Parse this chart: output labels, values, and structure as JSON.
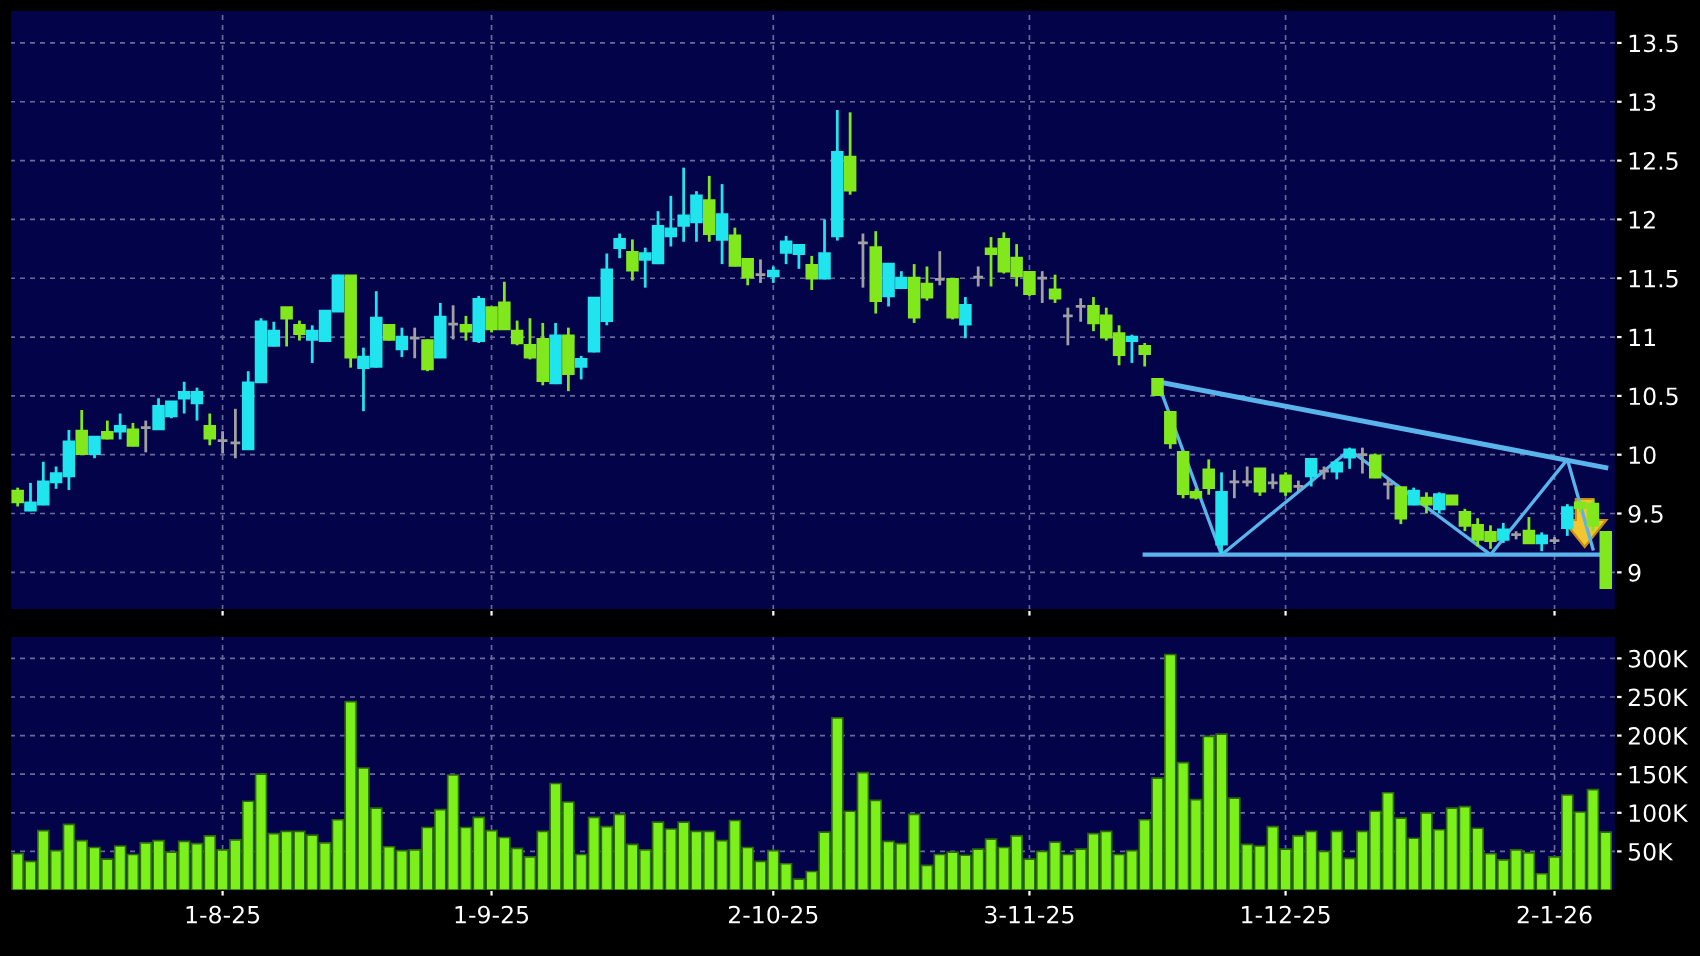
{
  "chart_data": [
    {
      "type": "candlestick",
      "grid": true,
      "tick_labels": "y",
      "ylim": [
        8.68,
        13.78
      ],
      "yticks": [
        9,
        9.5,
        10,
        10.5,
        11,
        11.5,
        12,
        12.5,
        13,
        13.5
      ],
      "categories": [
        null,
        null,
        null,
        null,
        null,
        null,
        null,
        null,
        null,
        null,
        null,
        null,
        null,
        null,
        null,
        null,
        null,
        null,
        null,
        null,
        null,
        null,
        null,
        null,
        null,
        null,
        null,
        null,
        null,
        null,
        null,
        null,
        null,
        null,
        null,
        null,
        null,
        null,
        null,
        null,
        null,
        null,
        null,
        null,
        null,
        null,
        null,
        null,
        null,
        null,
        null,
        null,
        null,
        null,
        null,
        null,
        null,
        null,
        null,
        null,
        null,
        null,
        null,
        null,
        null,
        null,
        null,
        null,
        null,
        null,
        null,
        null,
        null,
        null,
        null,
        null,
        null,
        null,
        null,
        null,
        null,
        null,
        null,
        null,
        null,
        null,
        null,
        null,
        null,
        null,
        null,
        null,
        null,
        null,
        null,
        null,
        null,
        null,
        null,
        null,
        null,
        null,
        null,
        null,
        null,
        null,
        null,
        null,
        null,
        null,
        null,
        null,
        null,
        null,
        null,
        null,
        null,
        null,
        null,
        null,
        null,
        null,
        null,
        null,
        null
      ],
      "ohlc": [
        [
          9.69,
          9.72,
          9.56,
          9.6
        ],
        [
          9.53,
          9.76,
          9.52,
          9.59
        ],
        [
          9.58,
          9.94,
          9.57,
          9.77
        ],
        [
          9.77,
          9.9,
          9.71,
          9.84
        ],
        [
          9.82,
          10.21,
          9.7,
          10.11
        ],
        [
          10.2,
          10.38,
          10.01,
          10.01
        ],
        [
          10.01,
          10.15,
          9.97,
          10.15
        ],
        [
          10.19,
          10.29,
          10.13,
          10.14
        ],
        [
          10.2,
          10.35,
          10.13,
          10.24
        ],
        [
          10.21,
          10.27,
          10.07,
          10.08
        ],
        [
          10.23,
          10.29,
          10.02,
          10.23
        ],
        [
          10.22,
          10.48,
          10.21,
          10.41
        ],
        [
          10.33,
          10.45,
          10.31,
          10.45
        ],
        [
          10.48,
          10.62,
          10.35,
          10.53
        ],
        [
          10.44,
          10.57,
          10.29,
          10.53
        ],
        [
          10.24,
          10.35,
          10.08,
          10.14
        ],
        [
          10.12,
          10.2,
          10.01,
          10.12
        ],
        [
          10.1,
          10.39,
          9.97,
          10.1
        ],
        [
          10.05,
          10.71,
          10.05,
          10.61
        ],
        [
          10.62,
          11.16,
          10.61,
          11.13
        ],
        [
          10.93,
          11.13,
          10.92,
          11.05
        ],
        [
          11.25,
          11.25,
          10.92,
          11.16
        ],
        [
          11.1,
          11.14,
          10.97,
          11.03
        ],
        [
          10.98,
          11.1,
          10.78,
          11.05
        ],
        [
          10.97,
          11.22,
          10.96,
          11.22
        ],
        [
          11.22,
          11.53,
          11.22,
          11.52
        ],
        [
          11.52,
          11.52,
          10.74,
          10.83
        ],
        [
          10.74,
          10.91,
          10.37,
          10.83
        ],
        [
          10.75,
          11.39,
          10.74,
          11.16
        ],
        [
          11.1,
          11.1,
          10.97,
          10.98
        ],
        [
          10.9,
          11.08,
          10.83,
          11.0
        ],
        [
          10.99,
          11.08,
          10.82,
          10.99
        ],
        [
          10.97,
          10.98,
          10.71,
          10.73
        ],
        [
          10.83,
          11.29,
          10.83,
          11.17
        ],
        [
          11.11,
          11.27,
          10.98,
          11.11
        ],
        [
          11.1,
          11.18,
          10.97,
          11.05
        ],
        [
          10.97,
          11.35,
          10.95,
          11.32
        ],
        [
          11.25,
          11.25,
          11.04,
          11.07
        ],
        [
          11.29,
          11.47,
          11.06,
          11.07
        ],
        [
          11.05,
          11.14,
          10.93,
          10.95
        ],
        [
          10.93,
          11.16,
          10.81,
          10.83
        ],
        [
          10.98,
          11.12,
          10.59,
          10.63
        ],
        [
          10.61,
          11.12,
          10.6,
          11.01
        ],
        [
          11.01,
          11.08,
          10.54,
          10.69
        ],
        [
          10.75,
          10.84,
          10.64,
          10.81
        ],
        [
          10.88,
          11.34,
          10.87,
          11.33
        ],
        [
          11.14,
          11.71,
          11.1,
          11.57
        ],
        [
          11.76,
          11.88,
          11.67,
          11.83
        ],
        [
          11.72,
          11.83,
          11.48,
          11.57
        ],
        [
          11.66,
          11.76,
          11.42,
          11.71
        ],
        [
          11.63,
          12.07,
          11.62,
          11.94
        ],
        [
          11.86,
          12.2,
          11.77,
          11.92
        ],
        [
          11.95,
          12.44,
          11.81,
          12.03
        ],
        [
          11.98,
          12.24,
          11.81,
          12.2
        ],
        [
          12.16,
          12.37,
          11.81,
          11.88
        ],
        [
          11.83,
          12.3,
          11.62,
          12.04
        ],
        [
          11.86,
          11.93,
          11.6,
          11.61
        ],
        [
          11.66,
          11.66,
          11.44,
          11.51
        ],
        [
          11.53,
          11.66,
          11.46,
          11.53
        ],
        [
          11.52,
          11.6,
          11.46,
          11.56
        ],
        [
          11.72,
          11.86,
          11.62,
          11.81
        ],
        [
          11.71,
          11.78,
          11.58,
          11.78
        ],
        [
          11.61,
          11.69,
          11.4,
          11.5
        ],
        [
          11.5,
          12.0,
          11.49,
          11.71
        ],
        [
          11.86,
          12.93,
          11.82,
          12.57
        ],
        [
          12.53,
          12.91,
          12.21,
          12.25
        ],
        [
          11.8,
          11.88,
          11.42,
          11.8
        ],
        [
          11.76,
          11.9,
          11.2,
          11.31
        ],
        [
          11.35,
          11.62,
          11.26,
          11.62
        ],
        [
          11.42,
          11.56,
          11.41,
          11.5
        ],
        [
          11.5,
          11.62,
          11.12,
          11.17
        ],
        [
          11.45,
          11.6,
          11.31,
          11.34
        ],
        [
          11.49,
          11.73,
          11.44,
          11.49
        ],
        [
          11.49,
          11.49,
          11.15,
          11.17
        ],
        [
          11.11,
          11.34,
          10.99,
          11.27
        ],
        [
          11.51,
          11.6,
          11.43,
          11.51
        ],
        [
          11.75,
          11.85,
          11.43,
          11.71
        ],
        [
          11.83,
          11.89,
          11.54,
          11.56
        ],
        [
          11.67,
          11.79,
          11.43,
          11.52
        ],
        [
          11.55,
          11.55,
          11.35,
          11.37
        ],
        [
          11.5,
          11.56,
          11.29,
          11.5
        ],
        [
          11.4,
          11.53,
          11.29,
          11.33
        ],
        [
          11.18,
          11.25,
          10.93,
          11.18
        ],
        [
          11.26,
          11.33,
          11.13,
          11.26
        ],
        [
          11.26,
          11.34,
          11.05,
          11.12
        ],
        [
          11.18,
          11.25,
          10.97,
          11.0
        ],
        [
          11.03,
          11.1,
          10.76,
          10.85
        ],
        [
          10.97,
          11.02,
          10.78,
          11.0
        ],
        [
          10.92,
          10.95,
          10.75,
          10.86
        ],
        [
          10.64,
          10.65,
          10.51,
          10.51
        ],
        [
          10.36,
          10.37,
          10.05,
          10.1
        ],
        [
          10.02,
          10.02,
          9.63,
          9.67
        ],
        [
          9.68,
          9.71,
          9.62,
          9.64
        ],
        [
          9.87,
          9.96,
          9.66,
          9.72
        ],
        [
          9.24,
          9.85,
          9.16,
          9.68
        ],
        [
          9.77,
          9.87,
          9.63,
          9.77
        ],
        [
          9.77,
          9.9,
          9.73,
          9.77
        ],
        [
          9.88,
          9.88,
          9.65,
          9.69
        ],
        [
          9.76,
          9.84,
          9.71,
          9.76
        ],
        [
          9.82,
          9.85,
          9.65,
          9.69
        ],
        [
          9.73,
          9.78,
          9.69,
          9.73
        ],
        [
          9.82,
          9.96,
          9.73,
          9.96
        ],
        [
          9.86,
          9.9,
          9.79,
          9.86
        ],
        [
          9.86,
          9.96,
          9.79,
          9.93
        ],
        [
          9.98,
          10.06,
          9.88,
          10.04
        ],
        [
          10.0,
          10.06,
          9.84,
          10.0
        ],
        [
          9.99,
          10.01,
          9.8,
          9.81
        ],
        [
          9.75,
          9.8,
          9.62,
          9.75
        ],
        [
          9.72,
          9.72,
          9.41,
          9.46
        ],
        [
          9.58,
          9.72,
          9.57,
          9.69
        ],
        [
          9.63,
          9.68,
          9.5,
          9.58
        ],
        [
          9.54,
          9.68,
          9.5,
          9.66
        ],
        [
          9.65,
          9.65,
          9.58,
          9.58
        ],
        [
          9.51,
          9.54,
          9.35,
          9.4
        ],
        [
          9.4,
          9.46,
          9.22,
          9.28
        ],
        [
          9.34,
          9.4,
          9.2,
          9.27
        ],
        [
          9.28,
          9.42,
          9.25,
          9.36
        ],
        [
          9.32,
          9.35,
          9.28,
          9.32
        ],
        [
          9.35,
          9.47,
          9.25,
          9.25
        ],
        [
          9.25,
          9.34,
          9.18,
          9.31
        ],
        [
          9.27,
          9.3,
          9.24,
          9.27
        ],
        [
          9.38,
          9.58,
          9.31,
          9.55
        ],
        [
          9.59,
          9.61,
          9.51,
          9.55
        ],
        [
          9.58,
          9.62,
          9.35,
          9.4
        ],
        [
          9.34,
          9.34,
          8.87,
          8.87
        ]
      ],
      "colors": [
        "#80e81c",
        "#20e4ee",
        "#20e4ee",
        "#20e4ee",
        "#20e4ee",
        "#80e81c",
        "#20e4ee",
        "#80e81c",
        "#20e4ee",
        "#80e81c",
        "#a0a0a0",
        "#20e4ee",
        "#20e4ee",
        "#20e4ee",
        "#20e4ee",
        "#80e81c",
        "#a0a0a0",
        "#a0a0a0",
        "#20e4ee",
        "#20e4ee",
        "#20e4ee",
        "#80e81c",
        "#80e81c",
        "#20e4ee",
        "#20e4ee",
        "#20e4ee",
        "#80e81c",
        "#20e4ee",
        "#20e4ee",
        "#80e81c",
        "#20e4ee",
        "#a0a0a0",
        "#80e81c",
        "#20e4ee",
        "#a0a0a0",
        "#80e81c",
        "#20e4ee",
        "#80e81c",
        "#80e81c",
        "#80e81c",
        "#80e81c",
        "#80e81c",
        "#20e4ee",
        "#80e81c",
        "#20e4ee",
        "#20e4ee",
        "#20e4ee",
        "#20e4ee",
        "#80e81c",
        "#20e4ee",
        "#20e4ee",
        "#20e4ee",
        "#20e4ee",
        "#20e4ee",
        "#80e81c",
        "#20e4ee",
        "#80e81c",
        "#80e81c",
        "#a0a0a0",
        "#20e4ee",
        "#20e4ee",
        "#20e4ee",
        "#80e81c",
        "#20e4ee",
        "#20e4ee",
        "#80e81c",
        "#a0a0a0",
        "#80e81c",
        "#20e4ee",
        "#20e4ee",
        "#80e81c",
        "#80e81c",
        "#a0a0a0",
        "#80e81c",
        "#20e4ee",
        "#a0a0a0",
        "#80e81c",
        "#80e81c",
        "#80e81c",
        "#80e81c",
        "#a0a0a0",
        "#80e81c",
        "#a0a0a0",
        "#a0a0a0",
        "#80e81c",
        "#80e81c",
        "#80e81c",
        "#20e4ee",
        "#80e81c",
        "#80e81c",
        "#80e81c",
        "#80e81c",
        "#80e81c",
        "#80e81c",
        "#20e4ee",
        "#a0a0a0",
        "#a0a0a0",
        "#80e81c",
        "#a0a0a0",
        "#80e81c",
        "#a0a0a0",
        "#20e4ee",
        "#a0a0a0",
        "#20e4ee",
        "#20e4ee",
        "#a0a0a0",
        "#80e81c",
        "#a0a0a0",
        "#80e81c",
        "#20e4ee",
        "#80e81c",
        "#20e4ee",
        "#80e81c",
        "#80e81c",
        "#80e81c",
        "#80e81c",
        "#20e4ee",
        "#a0a0a0",
        "#80e81c",
        "#20e4ee",
        "#a0a0a0",
        "#20e4ee",
        "#80e81c",
        "#80e81c",
        "#80e81c"
      ],
      "series": [
        {
          "type": "line",
          "color": "#5ab4ec",
          "values": [
            null,
            null,
            null,
            null,
            null,
            null,
            null,
            null,
            null,
            null,
            null,
            null,
            null,
            null,
            null,
            null,
            null,
            null,
            null,
            null,
            null,
            null,
            null,
            null,
            null,
            null,
            null,
            null,
            null,
            null,
            null,
            null,
            null,
            null,
            null,
            null,
            null,
            null,
            null,
            null,
            null,
            null,
            null,
            null,
            null,
            null,
            null,
            null,
            null,
            null,
            null,
            null,
            null,
            null,
            null,
            null,
            null,
            null,
            null,
            null,
            null,
            null,
            null,
            null,
            null,
            null,
            null,
            null,
            null,
            null,
            null,
            null,
            null,
            null,
            null,
            null,
            null,
            null,
            null,
            null,
            null,
            null,
            null,
            null,
            null,
            null,
            null,
            null,
            null,
            10.62,
            null,
            null,
            null,
            null,
            null,
            null,
            null,
            null,
            null,
            null,
            null,
            null,
            null,
            null,
            null,
            null,
            null,
            null,
            null,
            null,
            null,
            null,
            null,
            null,
            null,
            null,
            null,
            null,
            null,
            null,
            null,
            null,
            null,
            null,
            9.89
          ]
        },
        {
          "type": "line",
          "color": "#5ab4ec",
          "values": [
            null,
            null,
            null,
            null,
            null,
            null,
            null,
            null,
            null,
            null,
            null,
            null,
            null,
            null,
            null,
            null,
            null,
            null,
            null,
            null,
            null,
            null,
            null,
            null,
            null,
            null,
            null,
            null,
            null,
            null,
            null,
            null,
            null,
            null,
            null,
            null,
            null,
            null,
            null,
            null,
            null,
            null,
            null,
            null,
            null,
            null,
            null,
            null,
            null,
            null,
            null,
            null,
            null,
            null,
            null,
            null,
            null,
            null,
            null,
            null,
            null,
            null,
            null,
            null,
            null,
            null,
            null,
            null,
            null,
            null,
            null,
            null,
            null,
            null,
            null,
            null,
            null,
            null,
            null,
            null,
            null,
            null,
            null,
            null,
            null,
            null,
            null,
            null,
            9.15,
            null,
            null,
            null,
            null,
            null,
            null,
            null,
            null,
            null,
            null,
            null,
            null,
            null,
            null,
            null,
            null,
            null,
            null,
            null,
            null,
            null,
            null,
            null,
            null,
            null,
            null,
            null,
            null,
            null,
            null,
            null,
            null,
            null,
            null,
            null,
            9.15
          ]
        },
        {
          "type": "line",
          "color": "#5ab4ec",
          "values": [
            null,
            null,
            null,
            null,
            null,
            null,
            null,
            null,
            null,
            null,
            null,
            null,
            null,
            null,
            null,
            null,
            null,
            null,
            null,
            null,
            null,
            null,
            null,
            null,
            null,
            null,
            null,
            null,
            null,
            null,
            null,
            null,
            null,
            null,
            null,
            null,
            null,
            null,
            null,
            null,
            null,
            null,
            null,
            null,
            null,
            null,
            null,
            null,
            null,
            null,
            null,
            null,
            null,
            null,
            null,
            null,
            null,
            null,
            null,
            null,
            null,
            null,
            null,
            null,
            null,
            null,
            null,
            null,
            null,
            null,
            null,
            null,
            null,
            null,
            null,
            null,
            null,
            null,
            null,
            null,
            null,
            null,
            null,
            null,
            null,
            null,
            null,
            null,
            null,
            10.62,
            null,
            null,
            null,
            null,
            9.15,
            null,
            null,
            null,
            null,
            null,
            null,
            null,
            null,
            null,
            10.04,
            null,
            null,
            null,
            null,
            null,
            null,
            null,
            null,
            null,
            null,
            9.15,
            null,
            null,
            null,
            null,
            null,
            9.96,
            null,
            9.2,
            null
          ]
        }
      ]
    },
    {
      "type": "bar",
      "grid": true,
      "color": "#7cf01a",
      "ylim": [
        0,
        329000
      ],
      "yticks": [
        {
          "value": 50000,
          "label": "50K"
        },
        {
          "value": 100000,
          "label": "100K"
        },
        {
          "value": 150000,
          "label": "150K"
        },
        {
          "value": 200000,
          "label": "200K"
        },
        {
          "value": 250000,
          "label": "250K"
        },
        {
          "value": 300000,
          "label": "300K"
        }
      ],
      "categories": [
        null,
        null,
        null,
        null,
        null,
        null,
        null,
        null,
        null,
        null,
        null,
        null,
        null,
        null,
        null,
        null,
        "1-8-25",
        null,
        null,
        null,
        null,
        null,
        null,
        null,
        null,
        null,
        null,
        null,
        null,
        null,
        null,
        null,
        null,
        null,
        null,
        null,
        null,
        "1-9-25",
        null,
        null,
        null,
        null,
        null,
        null,
        null,
        null,
        null,
        null,
        null,
        null,
        null,
        null,
        null,
        null,
        null,
        null,
        null,
        null,
        null,
        "2-10-25",
        null,
        null,
        null,
        null,
        null,
        null,
        null,
        null,
        null,
        null,
        null,
        null,
        null,
        null,
        null,
        null,
        null,
        null,
        null,
        "3-11-25",
        null,
        null,
        null,
        null,
        null,
        null,
        null,
        null,
        null,
        null,
        null,
        null,
        null,
        null,
        null,
        null,
        null,
        null,
        null,
        "1-12-25",
        null,
        null,
        null,
        null,
        null,
        null,
        null,
        null,
        null,
        null,
        null,
        null,
        null,
        null,
        null,
        null,
        null,
        null,
        null,
        null,
        "2-1-26",
        null,
        null,
        null,
        null
      ],
      "values": [
        47000,
        37000,
        77000,
        51000,
        85000,
        64000,
        55000,
        40000,
        57000,
        46000,
        61000,
        64000,
        49000,
        63000,
        60000,
        70000,
        52000,
        65000,
        115000,
        150000,
        73000,
        76000,
        76000,
        71000,
        61000,
        91000,
        244000,
        158000,
        106000,
        56000,
        51000,
        52000,
        81000,
        104000,
        149000,
        81000,
        94000,
        77000,
        68000,
        54000,
        43000,
        76000,
        138000,
        114000,
        46000,
        94000,
        82000,
        98000,
        59000,
        52000,
        88000,
        79000,
        88000,
        76000,
        76000,
        64000,
        90000,
        55000,
        37000,
        51000,
        34000,
        14000,
        24000,
        75000,
        223000,
        102000,
        152000,
        116000,
        63000,
        60000,
        98000,
        32000,
        46000,
        49000,
        45000,
        53000,
        66000,
        55000,
        70000,
        40000,
        50000,
        62000,
        46000,
        53000,
        73000,
        76000,
        46000,
        51000,
        91000,
        145000,
        305000,
        165000,
        117000,
        199000,
        202000,
        119000,
        59000,
        57000,
        82000,
        53000,
        70000,
        76000,
        50000,
        76000,
        41000,
        76000,
        102000,
        126000,
        93000,
        67000,
        100000,
        78000,
        106000,
        108000,
        80000,
        47000,
        39000,
        52000,
        48000,
        21000,
        43000,
        123000,
        101000,
        130000,
        75000
      ]
    }
  ]
}
